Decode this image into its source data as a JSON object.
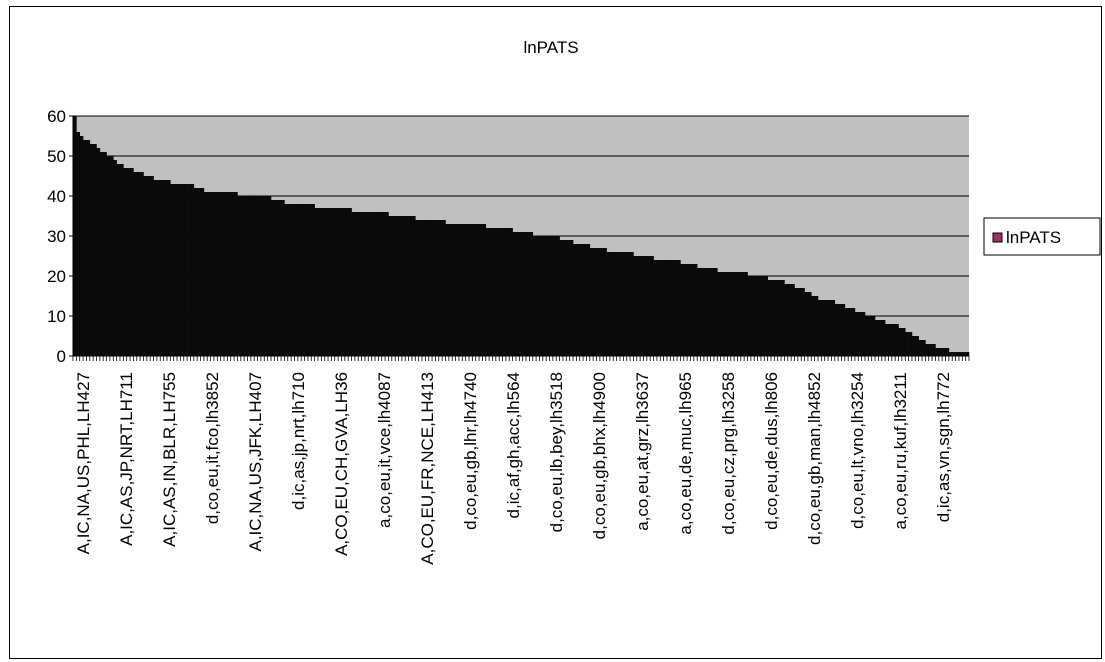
{
  "chart_data": {
    "type": "bar",
    "title": "lnPATS",
    "xlabel": "",
    "ylabel": "",
    "ylim": [
      0,
      60
    ],
    "yticks": [
      0,
      10,
      20,
      30,
      40,
      50,
      60
    ],
    "grid": true,
    "legend_position": "right",
    "colors": {
      "plot_background": "#c0c0c0",
      "bars": "#0a0a0a",
      "legend_swatch": "#993366"
    },
    "xtick_labels": [
      "A,IC,NA,US,PHL,LH427",
      "A,IC,AS,JP,NRT,LH711",
      "A,IC,AS,IN,BLR,LH755",
      "d,co,eu,it,fco,lh3852",
      "A,IC,NA,US,JFK,LH407",
      "d,ic,as,jp,nrt,lh710",
      "A,CO,EU,CH,GVA,LH36",
      "a,co,eu,it,vce,lh4087",
      "A,CO,EU,FR,NCE,LH413",
      "d,co,eu,gb,lhr,lh4740",
      "d,ic,af,gh,acc,lh564",
      "d,co,eu,lb,bey,lh3518",
      "d,co,eu,gb,bhx,lh4900",
      "a,co,eu,at,grz,lh3637",
      "a,co,eu,de,muc,lh965",
      "d,co,eu,cz,prg,lh3258",
      "d,co,eu,de,dus,lh806",
      "d,co,eu,gb,man,lh4852",
      "d,co,eu,lt,vno,lh3254",
      "a,co,eu,ru,kuf,lh3211",
      "d,ic,as,vn,sgn,lh772"
    ],
    "series": [
      {
        "name": "lnPATS",
        "values": [
          60,
          56,
          55,
          54,
          54,
          53,
          53,
          52,
          51,
          51,
          50,
          50,
          49,
          48,
          48,
          47,
          47,
          47,
          46,
          46,
          46,
          45,
          45,
          45,
          44,
          44,
          44,
          44,
          44,
          43,
          43,
          43,
          43,
          43,
          43,
          43,
          42,
          42,
          42,
          41,
          41,
          41,
          41,
          41,
          41,
          41,
          41,
          41,
          41,
          40,
          40,
          40,
          40,
          40,
          40,
          40,
          40,
          40,
          40,
          39,
          39,
          39,
          39,
          38,
          38,
          38,
          38,
          38,
          38,
          38,
          38,
          38,
          37,
          37,
          37,
          37,
          37,
          37,
          37,
          37,
          37,
          37,
          37,
          36,
          36,
          36,
          36,
          36,
          36,
          36,
          36,
          36,
          36,
          36,
          35,
          35,
          35,
          35,
          35,
          35,
          35,
          35,
          34,
          34,
          34,
          34,
          34,
          34,
          34,
          34,
          34,
          33,
          33,
          33,
          33,
          33,
          33,
          33,
          33,
          33,
          33,
          33,
          33,
          32,
          32,
          32,
          32,
          32,
          32,
          32,
          32,
          31,
          31,
          31,
          31,
          31,
          31,
          30,
          30,
          30,
          30,
          30,
          30,
          30,
          30,
          29,
          29,
          29,
          29,
          28,
          28,
          28,
          28,
          28,
          27,
          27,
          27,
          27,
          27,
          26,
          26,
          26,
          26,
          26,
          26,
          26,
          26,
          25,
          25,
          25,
          25,
          25,
          25,
          24,
          24,
          24,
          24,
          24,
          24,
          24,
          24,
          23,
          23,
          23,
          23,
          23,
          22,
          22,
          22,
          22,
          22,
          22,
          21,
          21,
          21,
          21,
          21,
          21,
          21,
          21,
          21,
          20,
          20,
          20,
          20,
          20,
          20,
          19,
          19,
          19,
          19,
          19,
          18,
          18,
          18,
          17,
          17,
          17,
          16,
          16,
          15,
          15,
          14,
          14,
          14,
          14,
          14,
          13,
          13,
          13,
          12,
          12,
          12,
          11,
          11,
          11,
          10,
          10,
          10,
          9,
          9,
          9,
          8,
          8,
          8,
          8,
          7,
          7,
          6,
          6,
          5,
          5,
          4,
          4,
          3,
          3,
          3,
          2,
          2,
          2,
          2,
          1,
          1,
          1,
          1,
          1,
          1
        ]
      }
    ]
  }
}
